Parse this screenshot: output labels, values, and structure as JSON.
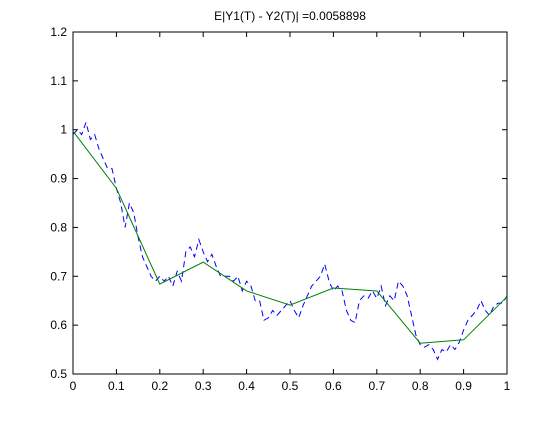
{
  "chart_data": {
    "type": "line",
    "title": "E|Y1(T) - Y2(T)| =0.0058898",
    "xlim": [
      0,
      1
    ],
    "ylim": [
      0.5,
      1.2
    ],
    "xticks": [
      0,
      0.1,
      0.2,
      0.3,
      0.4,
      0.5,
      0.6,
      0.7,
      0.8,
      0.9,
      1
    ],
    "yticks": [
      0.5,
      0.6,
      0.7,
      0.8,
      0.9,
      1,
      1.1,
      1.2
    ],
    "grid": false,
    "series": [
      {
        "color": "#0000ff",
        "dash": true,
        "x": [
          0,
          0.01,
          0.02,
          0.03,
          0.04,
          0.05,
          0.06,
          0.07,
          0.08,
          0.09,
          0.1,
          0.11,
          0.12,
          0.13,
          0.14,
          0.15,
          0.16,
          0.17,
          0.18,
          0.19,
          0.2,
          0.21,
          0.22,
          0.23,
          0.24,
          0.25,
          0.26,
          0.27,
          0.28,
          0.29,
          0.3,
          0.31,
          0.32,
          0.33,
          0.34,
          0.35,
          0.36,
          0.37,
          0.38,
          0.39,
          0.4,
          0.41,
          0.42,
          0.43,
          0.44,
          0.45,
          0.46,
          0.47,
          0.48,
          0.49,
          0.5,
          0.51,
          0.52,
          0.53,
          0.54,
          0.55,
          0.56,
          0.57,
          0.58,
          0.59,
          0.6,
          0.61,
          0.62,
          0.63,
          0.64,
          0.65,
          0.66,
          0.67,
          0.68,
          0.69,
          0.7,
          0.71,
          0.72,
          0.73,
          0.74,
          0.75,
          0.76,
          0.77,
          0.78,
          0.79,
          0.8,
          0.81,
          0.82,
          0.83,
          0.84,
          0.85,
          0.86,
          0.87,
          0.88,
          0.89,
          0.9,
          0.91,
          0.92,
          0.93,
          0.94,
          0.95,
          0.96,
          0.97,
          0.98,
          0.99,
          1
        ],
        "values": [
          0.99,
          1.0,
          0.99,
          1.015,
          0.98,
          0.99,
          0.96,
          0.94,
          0.92,
          0.92,
          0.88,
          0.85,
          0.8,
          0.85,
          0.83,
          0.78,
          0.74,
          0.72,
          0.7,
          0.69,
          0.7,
          0.69,
          0.7,
          0.68,
          0.71,
          0.69,
          0.75,
          0.76,
          0.74,
          0.775,
          0.75,
          0.73,
          0.745,
          0.72,
          0.7,
          0.7,
          0.7,
          0.69,
          0.7,
          0.67,
          0.69,
          0.68,
          0.65,
          0.65,
          0.61,
          0.615,
          0.63,
          0.62,
          0.63,
          0.64,
          0.65,
          0.63,
          0.615,
          0.64,
          0.66,
          0.68,
          0.69,
          0.7,
          0.725,
          0.69,
          0.67,
          0.68,
          0.67,
          0.63,
          0.61,
          0.605,
          0.65,
          0.66,
          0.655,
          0.67,
          0.655,
          0.68,
          0.64,
          0.66,
          0.65,
          0.69,
          0.68,
          0.66,
          0.62,
          0.58,
          0.56,
          0.555,
          0.56,
          0.55,
          0.53,
          0.55,
          0.545,
          0.56,
          0.55,
          0.565,
          0.59,
          0.61,
          0.62,
          0.63,
          0.65,
          0.63,
          0.62,
          0.64,
          0.645,
          0.645,
          0.66
        ]
      },
      {
        "color": "#008000",
        "dash": false,
        "x": [
          0,
          0.1,
          0.2,
          0.3,
          0.4,
          0.5,
          0.6,
          0.7,
          0.8,
          0.9,
          1
        ],
        "values": [
          0.997,
          0.88,
          0.684,
          0.729,
          0.67,
          0.641,
          0.676,
          0.67,
          0.563,
          0.57,
          0.658
        ]
      }
    ]
  }
}
